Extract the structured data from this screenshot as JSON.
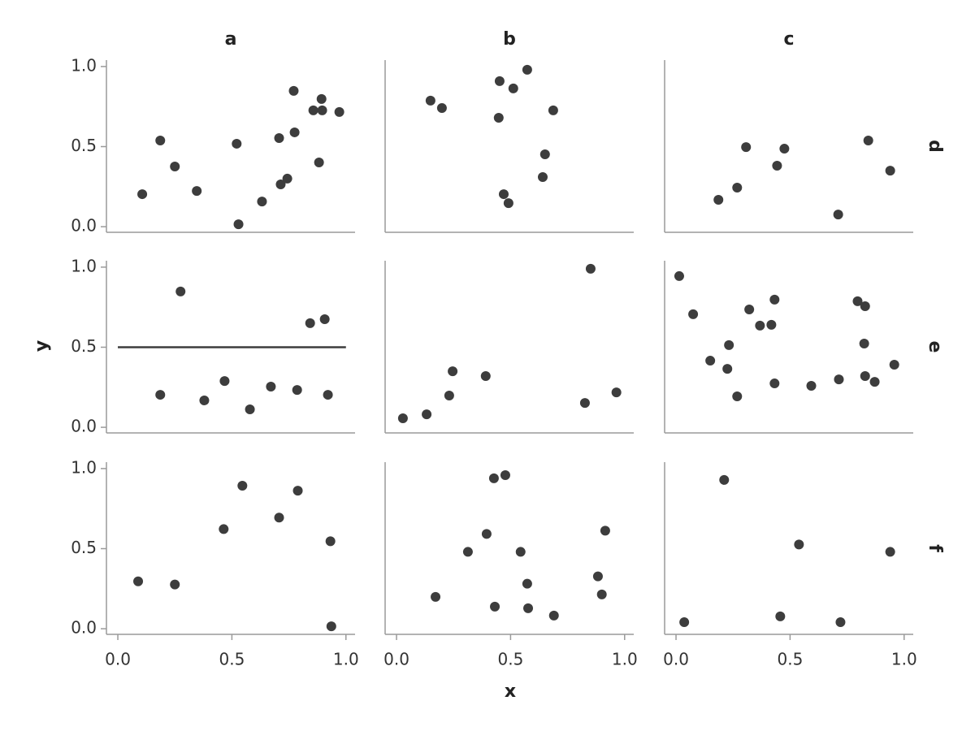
{
  "chart_data": {
    "type": "scatter",
    "x_label": "x",
    "y_label": "y",
    "col_labels": [
      "a",
      "b",
      "c"
    ],
    "row_labels": [
      "d",
      "e",
      "f"
    ],
    "color": "#3d3d3d",
    "xlim": [
      -0.05,
      1.04
    ],
    "ylim": [
      -0.035,
      1.04
    ],
    "xticks": [
      {
        "value": 0,
        "label": "0.0"
      },
      {
        "value": 0.5,
        "label": "0.5"
      },
      {
        "value": 1,
        "label": "1.0"
      }
    ],
    "yticks": [
      {
        "value": 0,
        "label": "0.0"
      },
      {
        "value": 0.5,
        "label": "0.5"
      },
      {
        "value": 1,
        "label": "1.0"
      }
    ],
    "panels": [
      {
        "x": [
          0.107,
          0.186,
          0.25,
          0.346,
          0.521,
          0.529,
          0.632,
          0.707,
          0.714,
          0.743,
          0.771,
          0.775,
          0.857,
          0.882,
          0.893,
          0.896,
          0.971
        ],
        "y": [
          0.203,
          0.538,
          0.376,
          0.223,
          0.518,
          0.015,
          0.157,
          0.553,
          0.264,
          0.3,
          0.848,
          0.589,
          0.726,
          0.401,
          0.797,
          0.726,
          0.716
        ]
      },
      {
        "x": [
          0.149,
          0.199,
          0.448,
          0.452,
          0.47,
          0.491,
          0.512,
          0.573,
          0.641,
          0.651,
          0.687
        ],
        "y": [
          0.787,
          0.741,
          0.68,
          0.909,
          0.203,
          0.147,
          0.863,
          0.98,
          0.31,
          0.452,
          0.726
        ]
      },
      {
        "x": [
          0.186,
          0.268,
          0.307,
          0.443,
          0.475,
          0.711,
          0.843,
          0.939
        ],
        "y": [
          0.168,
          0.244,
          0.497,
          0.381,
          0.487,
          0.076,
          0.538,
          0.35
        ]
      },
      {
        "x": [
          0.186,
          0.275,
          0.379,
          0.468,
          0.579,
          0.671,
          0.786,
          0.843,
          0.907,
          0.921
        ],
        "y": [
          0.203,
          0.848,
          0.168,
          0.289,
          0.112,
          0.254,
          0.233,
          0.65,
          0.675,
          0.203
        ],
        "hline": {
          "y": 0.5,
          "x": [
            0,
            1
          ]
        }
      },
      {
        "x": [
          0.028,
          0.132,
          0.231,
          0.246,
          0.391,
          0.826,
          0.851,
          0.964
        ],
        "y": [
          0.056,
          0.081,
          0.198,
          0.35,
          0.32,
          0.152,
          0.99,
          0.218
        ]
      },
      {
        "x": [
          0.014,
          0.075,
          0.15,
          0.225,
          0.232,
          0.268,
          0.321,
          0.368,
          0.418,
          0.432,
          0.432,
          0.593,
          0.714,
          0.796,
          0.829,
          0.825,
          0.829,
          0.871,
          0.957
        ],
        "y": [
          0.944,
          0.706,
          0.416,
          0.365,
          0.513,
          0.193,
          0.736,
          0.635,
          0.64,
          0.797,
          0.274,
          0.259,
          0.299,
          0.787,
          0.756,
          0.523,
          0.32,
          0.284,
          0.391
        ]
      },
      {
        "x": [
          0.089,
          0.25,
          0.464,
          0.546,
          0.707,
          0.789,
          0.932,
          0.936
        ],
        "y": [
          0.296,
          0.276,
          0.622,
          0.893,
          0.694,
          0.862,
          0.546,
          0.015
        ]
      },
      {
        "x": [
          0.171,
          0.313,
          0.395,
          0.427,
          0.431,
          0.477,
          0.544,
          0.573,
          0.577,
          0.69,
          0.883,
          0.9,
          0.915
        ],
        "y": [
          0.199,
          0.48,
          0.592,
          0.939,
          0.138,
          0.959,
          0.48,
          0.281,
          0.128,
          0.082,
          0.327,
          0.214,
          0.612
        ]
      },
      {
        "x": [
          0.036,
          0.211,
          0.457,
          0.539,
          0.721,
          0.939
        ],
        "y": [
          0.041,
          0.929,
          0.077,
          0.526,
          0.041,
          0.48
        ]
      }
    ]
  }
}
